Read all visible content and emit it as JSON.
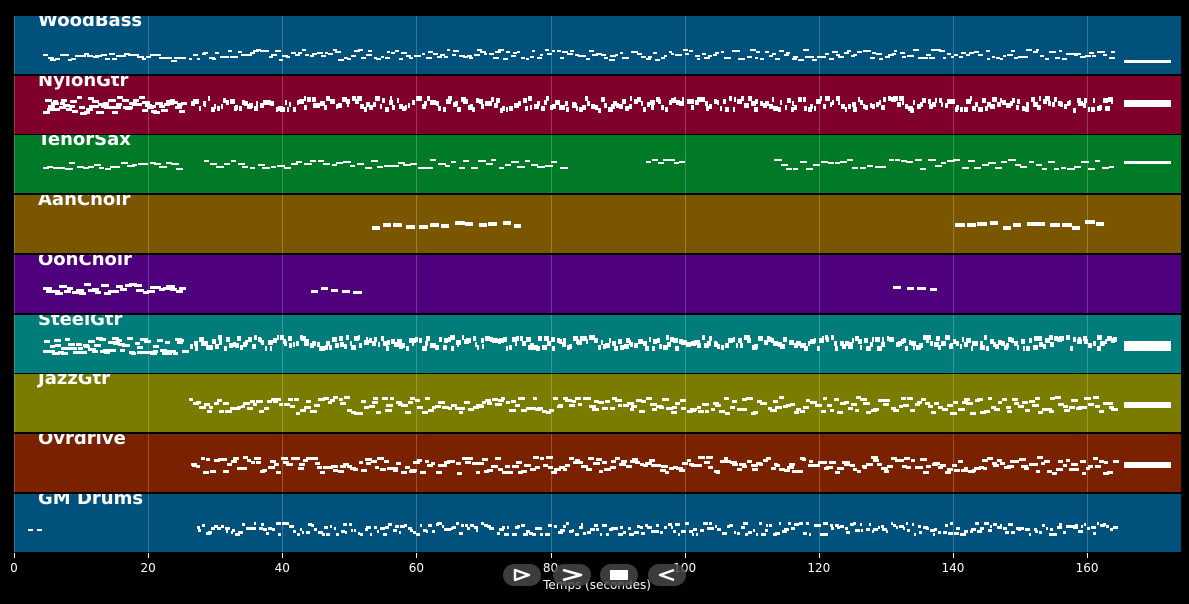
{
  "timeline": {
    "axis_label": "Temps (secondes)",
    "ticks": [
      "0",
      "20",
      "40",
      "60",
      "80",
      "100",
      "120",
      "140",
      "160"
    ],
    "tick_values": [
      0,
      20,
      40,
      60,
      80,
      100,
      120,
      140,
      160
    ],
    "x_range": [
      0,
      174
    ]
  },
  "tracks": [
    {
      "name": "WoodBass",
      "color": "#00517c"
    },
    {
      "name": "NylonGtr",
      "color": "#80002c"
    },
    {
      "name": "TenorSax",
      "color": "#007a26"
    },
    {
      "name": "AahChoir",
      "color": "#7a5600"
    },
    {
      "name": "OohChoir",
      "color": "#4f007c"
    },
    {
      "name": "SteelGtr",
      "color": "#007c7a"
    },
    {
      "name": "JazzGtr",
      "color": "#7a7c00"
    },
    {
      "name": "Ovrdrive",
      "color": "#7a2200"
    },
    {
      "name": "GM Drums",
      "color": "#00517c"
    }
  ],
  "controls": [
    {
      "name": "play-icon"
    },
    {
      "name": "fast-forward-icon"
    },
    {
      "name": "stop-icon"
    },
    {
      "name": "rewind-icon"
    }
  ]
}
